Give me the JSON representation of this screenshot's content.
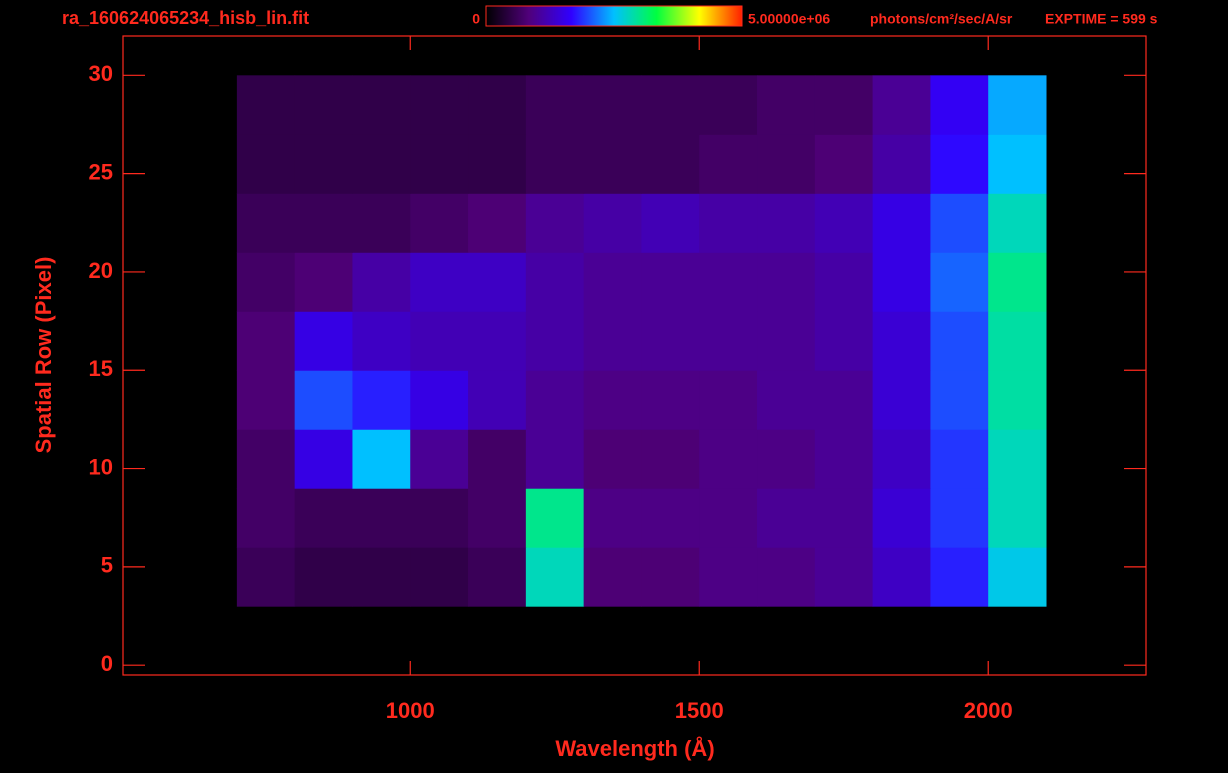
{
  "chart_data": {
    "type": "heatmap",
    "title": "ra_160624065234_hisb_lin.fit",
    "exposure": "EXPTIME = 599 s",
    "x_label": "Wavelength (Å)",
    "y_label": "Spatial Row (Pixel)",
    "xlim": [
      503,
      2273
    ],
    "ylim": [
      -0.5,
      32
    ],
    "xticks": [
      1000,
      1500,
      2000
    ],
    "yticks": [
      0,
      5,
      10,
      15,
      20,
      25,
      30
    ],
    "colorbar_ticks": [
      0,
      {
        "value": 5000000,
        "label": "5.00000e+06"
      }
    ],
    "colorbar_unit": "photons/cm²/sec/A/sr",
    "colormap": [
      "#000000",
      "#50007a",
      "#3000ff",
      "#00c0ff",
      "#00ff40",
      "#ffff00",
      "#ff2000"
    ],
    "xbins": [
      700,
      800,
      900,
      1000,
      1100,
      1200,
      1300,
      1400,
      1500,
      1600,
      1700,
      1800,
      1900,
      2000,
      2100
    ],
    "ybins": [
      3,
      6,
      9,
      12,
      15,
      18,
      21,
      24,
      27,
      30
    ],
    "values": [
      [
        600000,
        500000,
        500000,
        500000,
        600000,
        2800000,
        800000,
        800000,
        900000,
        900000,
        1000000,
        1300000,
        1800000,
        2600000
      ],
      [
        700000,
        600000,
        600000,
        600000,
        700000,
        3000000,
        900000,
        900000,
        900000,
        1000000,
        1000000,
        1400000,
        1900000,
        2800000
      ],
      [
        700000,
        1500000,
        2500000,
        1000000,
        700000,
        1000000,
        800000,
        800000,
        900000,
        900000,
        1000000,
        1300000,
        1900000,
        2800000
      ],
      [
        800000,
        2000000,
        1800000,
        1500000,
        1200000,
        1000000,
        900000,
        900000,
        900000,
        1000000,
        1000000,
        1400000,
        2000000,
        2900000
      ],
      [
        800000,
        1500000,
        1300000,
        1200000,
        1200000,
        1100000,
        1000000,
        1000000,
        1000000,
        1000000,
        1100000,
        1400000,
        2000000,
        2900000
      ],
      [
        700000,
        800000,
        1100000,
        1300000,
        1300000,
        1100000,
        1000000,
        1000000,
        1000000,
        1000000,
        1100000,
        1500000,
        2100000,
        3000000
      ],
      [
        600000,
        600000,
        600000,
        700000,
        800000,
        1000000,
        1100000,
        1200000,
        1100000,
        1100000,
        1200000,
        1500000,
        2000000,
        2800000
      ],
      [
        500000,
        500000,
        500000,
        500000,
        500000,
        600000,
        600000,
        600000,
        700000,
        700000,
        800000,
        1100000,
        1700000,
        2500000
      ],
      [
        500000,
        500000,
        500000,
        500000,
        500000,
        600000,
        600000,
        600000,
        600000,
        700000,
        700000,
        1000000,
        1600000,
        2400000
      ]
    ]
  }
}
